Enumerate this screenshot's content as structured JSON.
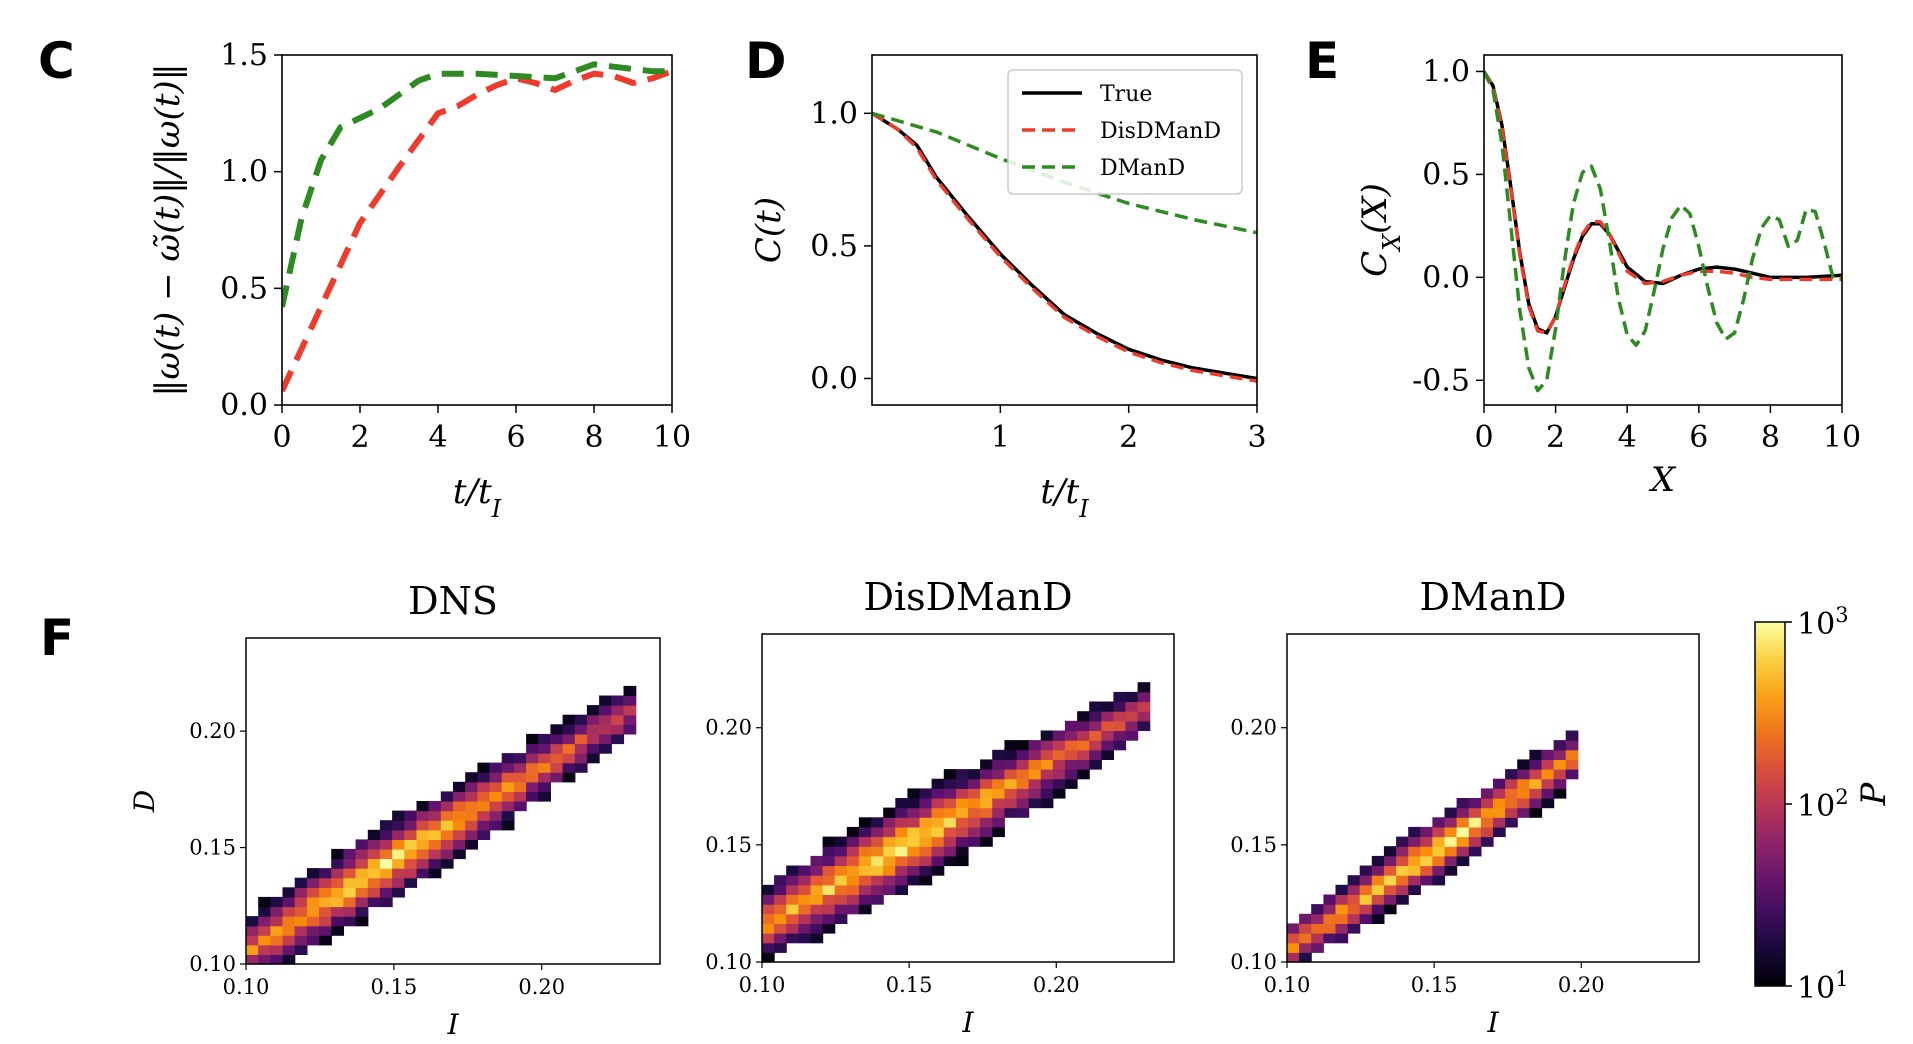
{
  "panels": {
    "c": "C",
    "d": "D",
    "e": "E",
    "f": "F"
  },
  "chart_data": [
    {
      "id": "C",
      "type": "line",
      "ylabel": "‖ω(t) − ω̃(t)‖/‖ω(t)‖",
      "xlabel": "t/t_I",
      "xlim": [
        0,
        10
      ],
      "ylim": [
        0,
        1.5
      ],
      "xticks": [
        "0",
        "2",
        "4",
        "6",
        "8",
        "10"
      ],
      "yticks": [
        "0.0",
        "0.5",
        "1.0",
        "1.5"
      ],
      "series": [
        {
          "name": "DisDManD",
          "color": "#ef3b2c",
          "dash": true,
          "x": [
            0,
            1,
            2,
            3,
            4,
            4.5,
            5,
            5.5,
            6,
            6.5,
            7,
            7.5,
            8,
            8.5,
            9,
            9.5,
            10
          ],
          "y": [
            0.06,
            0.42,
            0.78,
            1.02,
            1.25,
            1.28,
            1.33,
            1.37,
            1.4,
            1.38,
            1.35,
            1.39,
            1.42,
            1.41,
            1.38,
            1.4,
            1.43
          ]
        },
        {
          "name": "DManD",
          "color": "#2e8b22",
          "dash": true,
          "x": [
            0,
            0.5,
            1,
            1.5,
            2,
            2.5,
            3,
            3.5,
            4,
            4.5,
            5,
            6,
            7,
            7.5,
            8,
            8.5,
            9,
            9.5,
            10
          ],
          "y": [
            0.42,
            0.8,
            1.05,
            1.19,
            1.23,
            1.27,
            1.33,
            1.39,
            1.42,
            1.42,
            1.42,
            1.41,
            1.4,
            1.43,
            1.46,
            1.45,
            1.44,
            1.43,
            1.43
          ]
        }
      ]
    },
    {
      "id": "D",
      "type": "line",
      "ylabel": "C(t)",
      "xlabel": "t/t_I",
      "xlim": [
        0,
        3
      ],
      "ylim": [
        -0.1,
        1.22
      ],
      "xticks": [
        "1",
        "2",
        "3"
      ],
      "xtickvals": [
        1,
        2,
        3
      ],
      "yticks": [
        "0.0",
        "0.5",
        "1.0"
      ],
      "ytickvals": [
        0,
        0.5,
        1
      ],
      "legend": [
        "True",
        "DisDManD",
        "DManD"
      ],
      "series": [
        {
          "name": "True",
          "color": "#000000",
          "dash": false,
          "x": [
            0,
            0.2,
            0.35,
            0.5,
            0.75,
            1.0,
            1.25,
            1.5,
            1.75,
            2.0,
            2.25,
            2.5,
            2.75,
            3.0
          ],
          "y": [
            1.0,
            0.94,
            0.88,
            0.76,
            0.61,
            0.47,
            0.35,
            0.24,
            0.17,
            0.11,
            0.07,
            0.04,
            0.02,
            0.0
          ]
        },
        {
          "name": "DisDManD",
          "color": "#ef3b2c",
          "dash": true,
          "x": [
            0,
            0.2,
            0.35,
            0.5,
            0.75,
            1.0,
            1.25,
            1.5,
            1.75,
            2.0,
            2.25,
            2.5,
            2.75,
            3.0
          ],
          "y": [
            1.0,
            0.94,
            0.87,
            0.75,
            0.6,
            0.46,
            0.34,
            0.23,
            0.16,
            0.1,
            0.06,
            0.03,
            0.01,
            -0.01
          ]
        },
        {
          "name": "DManD",
          "color": "#2e8b22",
          "dash": true,
          "x": [
            0,
            0.5,
            1.0,
            1.5,
            2.0,
            2.5,
            3.0
          ],
          "y": [
            1.0,
            0.93,
            0.83,
            0.74,
            0.66,
            0.6,
            0.55
          ]
        }
      ]
    },
    {
      "id": "E",
      "type": "line",
      "ylabel": "C_X(X)",
      "xlabel": "X",
      "xlim": [
        0,
        10
      ],
      "ylim": [
        -0.62,
        1.08
      ],
      "xticks": [
        "0",
        "2",
        "4",
        "6",
        "8",
        "10"
      ],
      "xtickvals": [
        0,
        2,
        4,
        6,
        8,
        10
      ],
      "yticks": [
        "-0.5",
        "0.0",
        "0.5",
        "1.0"
      ],
      "ytickvals": [
        -0.5,
        0,
        0.5,
        1
      ],
      "series": [
        {
          "name": "True",
          "color": "#000000",
          "dash": false,
          "x": [
            0,
            0.25,
            0.5,
            0.75,
            1.0,
            1.25,
            1.5,
            1.75,
            2.0,
            2.25,
            2.5,
            2.75,
            3.0,
            3.25,
            3.5,
            3.75,
            4.0,
            4.5,
            5.0,
            5.5,
            6.0,
            6.5,
            7.0,
            7.5,
            8.0,
            9.0,
            10.0
          ],
          "y": [
            1.0,
            0.93,
            0.74,
            0.44,
            0.12,
            -0.13,
            -0.25,
            -0.27,
            -0.19,
            -0.05,
            0.09,
            0.2,
            0.26,
            0.26,
            0.21,
            0.13,
            0.05,
            -0.02,
            -0.03,
            0.01,
            0.04,
            0.05,
            0.04,
            0.02,
            0.0,
            0.0,
            0.01
          ]
        },
        {
          "name": "DisDManD",
          "color": "#ef3b2c",
          "dash": true,
          "x": [
            0,
            0.25,
            0.5,
            0.75,
            1.0,
            1.25,
            1.5,
            1.75,
            2.0,
            2.25,
            2.5,
            2.75,
            3.0,
            3.25,
            3.5,
            3.75,
            4.0,
            4.5,
            5.0,
            5.5,
            6.0,
            6.5,
            7.0,
            7.5,
            8.0,
            9.0,
            10.0
          ],
          "y": [
            1.0,
            0.93,
            0.73,
            0.43,
            0.11,
            -0.14,
            -0.26,
            -0.27,
            -0.19,
            -0.04,
            0.1,
            0.21,
            0.27,
            0.27,
            0.21,
            0.12,
            0.03,
            -0.03,
            -0.02,
            0.01,
            0.03,
            0.03,
            0.02,
            0.0,
            -0.01,
            -0.01,
            -0.01
          ]
        },
        {
          "name": "DManD",
          "color": "#2e8b22",
          "dash": true,
          "x": [
            0,
            0.25,
            0.5,
            0.75,
            1.0,
            1.25,
            1.5,
            1.75,
            2.0,
            2.25,
            2.5,
            2.75,
            3.0,
            3.25,
            3.5,
            3.75,
            4.0,
            4.25,
            4.5,
            4.75,
            5.0,
            5.25,
            5.5,
            5.75,
            6.0,
            6.25,
            6.5,
            6.75,
            7.0,
            7.25,
            7.5,
            7.75,
            8.0,
            8.25,
            8.5,
            8.75,
            9.0,
            9.25,
            9.5,
            9.75,
            10.0
          ],
          "y": [
            1.0,
            0.91,
            0.65,
            0.25,
            -0.16,
            -0.44,
            -0.55,
            -0.5,
            -0.25,
            0.08,
            0.36,
            0.51,
            0.54,
            0.43,
            0.18,
            -0.1,
            -0.28,
            -0.33,
            -0.26,
            -0.07,
            0.14,
            0.29,
            0.35,
            0.31,
            0.15,
            -0.05,
            -0.22,
            -0.3,
            -0.27,
            -0.11,
            0.09,
            0.24,
            0.3,
            0.28,
            0.15,
            0.18,
            0.33,
            0.32,
            0.17,
            0.0,
            0.0
          ]
        }
      ]
    },
    {
      "id": "F",
      "type": "heatmap",
      "xlabel": "I",
      "ylabel": "D",
      "colorbar_label": "P",
      "colormap": "inferno",
      "scale": "log",
      "colorbar_ticks": [
        "10^1",
        "10^2",
        "10^3"
      ],
      "colorbar_range": [
        1,
        3
      ],
      "xlim": [
        0.1,
        0.24
      ],
      "ylim": [
        0.1,
        0.24
      ],
      "xticks": [
        "0.10",
        "0.15",
        "0.20"
      ],
      "xtickvals": [
        0.1,
        0.15,
        0.2
      ],
      "yticks": [
        "0.10",
        "0.15",
        "0.20"
      ],
      "ytickvals": [
        0.1,
        0.15,
        0.2
      ],
      "subplots": [
        {
          "title": "DNS",
          "ridge": {
            "x": [
              0.1,
              0.225
            ],
            "y": [
              0.105,
              0.205
            ]
          },
          "width": 0.013,
          "peak": [
            0.145,
            0.145
          ],
          "extent": [
            0.1,
            0.232
          ]
        },
        {
          "title": "DisDManD",
          "ridge": {
            "x": [
              0.1,
              0.225
            ],
            "y": [
              0.115,
              0.205
            ]
          },
          "width": 0.015,
          "peak": [
            0.145,
            0.145
          ],
          "extent": [
            0.1,
            0.23
          ]
        },
        {
          "title": "DManD",
          "ridge": {
            "x": [
              0.1,
              0.2
            ],
            "y": [
              0.105,
              0.19
            ]
          },
          "width": 0.01,
          "peak": [
            0.152,
            0.15
          ],
          "extent": [
            0.1,
            0.2
          ]
        }
      ]
    }
  ]
}
